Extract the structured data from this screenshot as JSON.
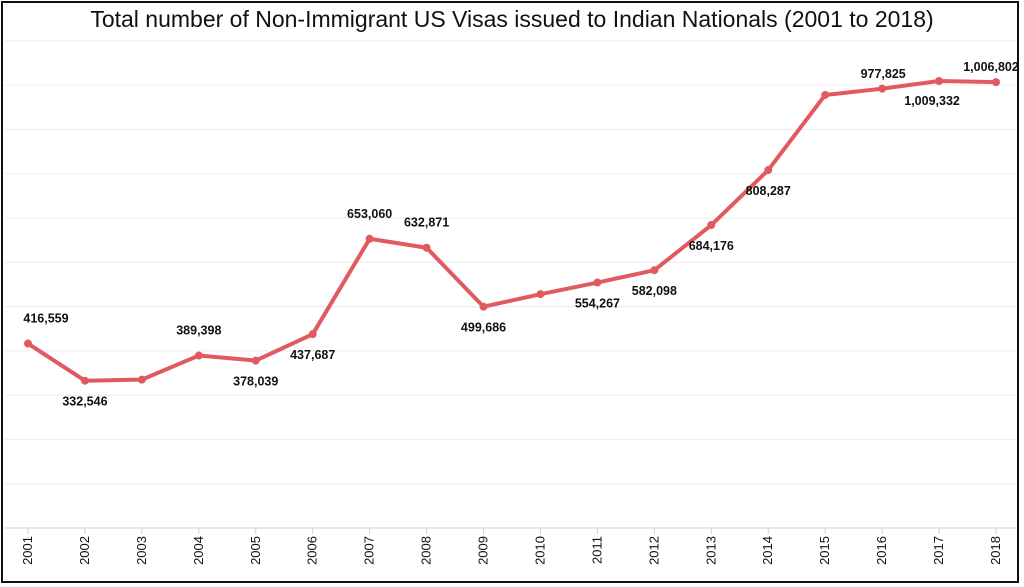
{
  "chart_data": {
    "type": "line",
    "title": "Total number of Non-Immigrant US Visas issued to Indian Nationals (2001 to 2018)",
    "xlabel": "",
    "ylabel": "",
    "ylim": [
      0,
      1120000
    ],
    "grid": true,
    "categories": [
      "2001",
      "2002",
      "2003",
      "2004",
      "2005",
      "2006",
      "2007",
      "2008",
      "2009",
      "2010",
      "2011",
      "2012",
      "2013",
      "2014",
      "2015",
      "2016",
      "2017",
      "2018"
    ],
    "series": [
      {
        "color": "#e05a5f",
        "values": [
          416559,
          332546,
          335000,
          389398,
          378039,
          437687,
          653060,
          632871,
          499686,
          528000,
          554267,
          582098,
          684176,
          808287,
          977825,
          992000,
          1009332,
          1006802
        ],
        "labels": [
          "416,559",
          "332,546",
          "",
          "389,398",
          "378,039",
          "437,687",
          "653,060",
          "632,871",
          "499,686",
          "",
          "554,267",
          "582,098",
          "684,176",
          "808,287",
          "977,825",
          "",
          "1,009,332",
          "1,006,802"
        ]
      }
    ]
  }
}
